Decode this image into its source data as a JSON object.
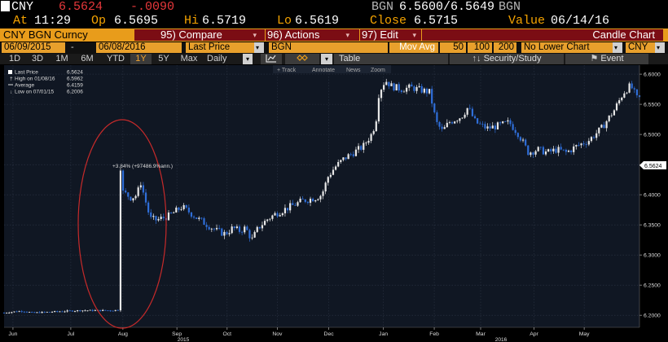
{
  "header": {
    "ticker": "CNY",
    "price": "6.5624",
    "change": "-.0090",
    "bid_source": "BGN",
    "bid_ask": "6.5600/6.5649",
    "ask_source": "BGN",
    "at_label": "At",
    "time": "11:29",
    "op_label": "Op",
    "open": "6.5695",
    "hi_label": "Hi",
    "high": "6.5719",
    "lo_label": "Lo",
    "low": "6.5619",
    "close_label": "Close",
    "close": "6.5715",
    "value_label": "Value",
    "value_date": "06/14/16"
  },
  "command_bar": {
    "security": "CNY BGN Curncy",
    "compare": "95) Compare",
    "actions": "96) Actions",
    "edit": "97) Edit",
    "chart_title": "Candle Chart",
    "arrow": "▾"
  },
  "params": {
    "start_date": "06/09/2015",
    "dash": "-",
    "end_date": "06/08/2016",
    "field": "Last Price",
    "source": "BGN",
    "mov_avg_label": "Mov Avg",
    "ma1": "50",
    "ma2": "100",
    "ma3": "200",
    "lower_chart": "No Lower Chart",
    "currency": "CNY"
  },
  "periods": [
    "1D",
    "3D",
    "1M",
    "6M",
    "YTD",
    "1Y",
    "5Y",
    "Max"
  ],
  "selected_period": "1Y",
  "frequency": "Daily",
  "toolbar": {
    "table": "Table",
    "security_study": "Security/Study",
    "event": "Event",
    "track": "+ Track",
    "annotate": "Annotate",
    "news": "News",
    "zoom": "Zoom"
  },
  "legend": {
    "last_label": "Last Price",
    "last_value": "6.5624",
    "high_label": "High on 01/08/16",
    "high_value": "6.5962",
    "avg_label": "Average",
    "avg_value": "6.4159",
    "low_label": "Low on 07/01/15",
    "low_value": "6.2006"
  },
  "chart_data": {
    "type": "candlestick",
    "ylim": [
      6.18,
      6.615
    ],
    "yticks": [
      "6.6000",
      "6.5500",
      "6.5000",
      "6.4500",
      "6.4000",
      "6.3500",
      "6.3000",
      "6.2500",
      "6.2000"
    ],
    "ytick_values": [
      6.6,
      6.55,
      6.5,
      6.45,
      6.4,
      6.35,
      6.3,
      6.25,
      6.2
    ],
    "last_value_label": "6.5624",
    "annotation": "+3.84% (+97486.9%ann.)",
    "xticks": [
      {
        "label": "Jun",
        "t": 0.014
      },
      {
        "label": "Jul",
        "t": 0.105
      },
      {
        "label": "Aug",
        "t": 0.187
      },
      {
        "label": "Sep",
        "t": 0.272
      },
      {
        "label": "Oct",
        "t": 0.351
      },
      {
        "label": "Nov",
        "t": 0.43
      },
      {
        "label": "Dec",
        "t": 0.511
      },
      {
        "label": "Jan",
        "t": 0.597
      },
      {
        "label": "Feb",
        "t": 0.677
      },
      {
        "label": "Mar",
        "t": 0.75
      },
      {
        "label": "Apr",
        "t": 0.834
      },
      {
        "label": "May",
        "t": 0.913
      }
    ],
    "year_labels": [
      {
        "label": "2015",
        "t": 0.282
      },
      {
        "label": "2016",
        "t": 0.782
      }
    ],
    "path": [
      [
        0,
        6.204
      ],
      [
        0.016,
        6.206
      ],
      [
        0.03,
        6.207
      ],
      [
        0.045,
        6.204
      ],
      [
        0.06,
        6.205
      ],
      [
        0.08,
        6.206
      ],
      [
        0.1,
        6.207
      ],
      [
        0.12,
        6.208
      ],
      [
        0.135,
        6.208
      ],
      [
        0.155,
        6.208
      ],
      [
        0.172,
        6.208
      ],
      [
        0.18,
        6.209
      ],
      [
        0.181,
        6.29
      ],
      [
        0.183,
        6.45
      ],
      [
        0.186,
        6.405
      ],
      [
        0.2,
        6.395
      ],
      [
        0.21,
        6.4
      ],
      [
        0.214,
        6.425
      ],
      [
        0.22,
        6.4
      ],
      [
        0.23,
        6.36
      ],
      [
        0.24,
        6.358
      ],
      [
        0.26,
        6.365
      ],
      [
        0.28,
        6.38
      ],
      [
        0.293,
        6.37
      ],
      [
        0.305,
        6.36
      ],
      [
        0.32,
        6.35
      ],
      [
        0.335,
        6.34
      ],
      [
        0.348,
        6.335
      ],
      [
        0.36,
        6.345
      ],
      [
        0.37,
        6.34
      ],
      [
        0.38,
        6.345
      ],
      [
        0.39,
        6.325
      ],
      [
        0.4,
        6.345
      ],
      [
        0.415,
        6.36
      ],
      [
        0.43,
        6.37
      ],
      [
        0.45,
        6.38
      ],
      [
        0.47,
        6.39
      ],
      [
        0.49,
        6.395
      ],
      [
        0.5,
        6.4
      ],
      [
        0.51,
        6.43
      ],
      [
        0.52,
        6.445
      ],
      [
        0.535,
        6.46
      ],
      [
        0.55,
        6.47
      ],
      [
        0.565,
        6.48
      ],
      [
        0.578,
        6.5
      ],
      [
        0.585,
        6.52
      ],
      [
        0.59,
        6.57
      ],
      [
        0.6,
        6.59
      ],
      [
        0.61,
        6.58
      ],
      [
        0.625,
        6.575
      ],
      [
        0.64,
        6.578
      ],
      [
        0.655,
        6.574
      ],
      [
        0.67,
        6.57
      ],
      [
        0.68,
        6.52
      ],
      [
        0.69,
        6.505
      ],
      [
        0.7,
        6.52
      ],
      [
        0.72,
        6.53
      ],
      [
        0.73,
        6.545
      ],
      [
        0.742,
        6.52
      ],
      [
        0.76,
        6.51
      ],
      [
        0.78,
        6.515
      ],
      [
        0.795,
        6.52
      ],
      [
        0.81,
        6.5
      ],
      [
        0.825,
        6.47
      ],
      [
        0.84,
        6.475
      ],
      [
        0.855,
        6.47
      ],
      [
        0.87,
        6.475
      ],
      [
        0.885,
        6.47
      ],
      [
        0.9,
        6.48
      ],
      [
        0.92,
        6.49
      ],
      [
        0.94,
        6.51
      ],
      [
        0.96,
        6.54
      ],
      [
        0.975,
        6.57
      ],
      [
        0.985,
        6.58
      ],
      [
        0.99,
        6.575
      ],
      [
        0.995,
        6.56
      ],
      [
        1,
        6.56
      ]
    ]
  }
}
